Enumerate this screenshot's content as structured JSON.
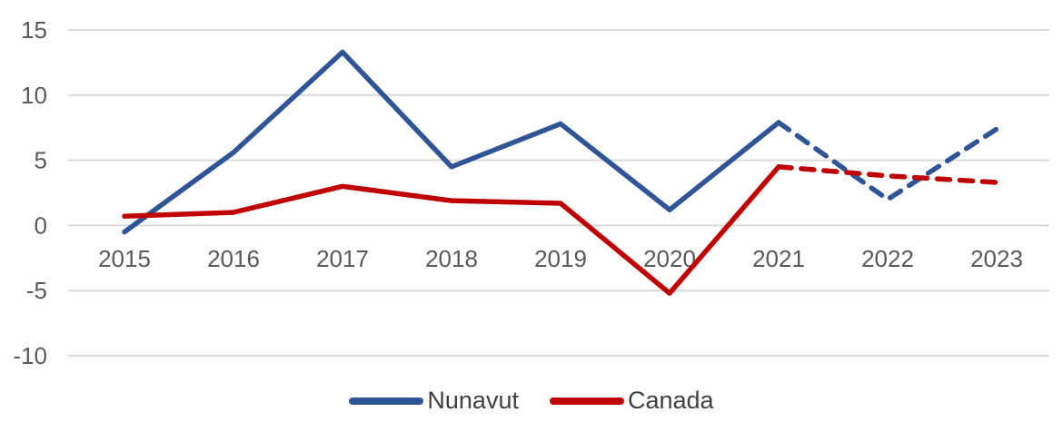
{
  "chart_data": {
    "type": "line",
    "title": "",
    "xlabel": "",
    "ylabel": "",
    "x": [
      2015,
      2016,
      2017,
      2018,
      2019,
      2020,
      2021,
      2022,
      2023
    ],
    "series": [
      {
        "name": "Nunavut",
        "color": "#2f5597",
        "values": [
          -0.5,
          5.6,
          13.3,
          4.5,
          7.8,
          1.2,
          7.9,
          2.0,
          7.4
        ],
        "solid_until_index": 6,
        "style_after": "dashed"
      },
      {
        "name": "Canada",
        "color": "#c00000",
        "values": [
          0.7,
          1.0,
          3.0,
          1.9,
          1.7,
          -5.2,
          4.5,
          3.8,
          3.3
        ],
        "solid_until_index": 6,
        "style_after": "dashed"
      }
    ],
    "ylim": [
      -10,
      15
    ],
    "yticks": [
      15,
      10,
      5,
      0,
      -5,
      -10
    ],
    "grid": "horizontal",
    "gridline_color": "#d9d9d9",
    "axis_label_color": "#595959",
    "legend_position": "bottom",
    "note": "lines become dashed (projection) after 2021"
  },
  "legend": {
    "items": [
      {
        "label": "Nunavut",
        "color": "#2f5597"
      },
      {
        "label": "Canada",
        "color": "#c00000"
      }
    ]
  }
}
